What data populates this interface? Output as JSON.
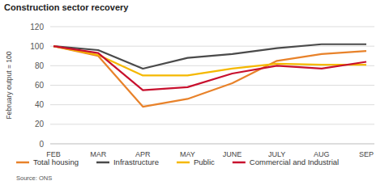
{
  "chart_data": {
    "type": "line",
    "title": "Construction sector recovery",
    "y_label": "February output = 100",
    "source": "Source: ONS",
    "categories": [
      "FEB",
      "MAR",
      "APR",
      "MAY",
      "JUNE",
      "JULY",
      "AUG",
      "SEP"
    ],
    "series": [
      {
        "name": "Total housing",
        "color": "#e8822a",
        "values": [
          100,
          90,
          38,
          46,
          62,
          85,
          92,
          95
        ]
      },
      {
        "name": "Infrastructure",
        "color": "#4a4a4a",
        "values": [
          100,
          96,
          77,
          88,
          92,
          98,
          102,
          102
        ]
      },
      {
        "name": "Public",
        "color": "#f5b800",
        "values": [
          100,
          91,
          70,
          70,
          77,
          82,
          81,
          81
        ]
      },
      {
        "name": "Commercial and Industrial",
        "color": "#c8102e",
        "values": [
          100,
          93,
          55,
          58,
          72,
          80,
          77,
          84
        ]
      }
    ],
    "ylim": [
      0,
      120
    ],
    "yticks": [
      0,
      20,
      40,
      60,
      80,
      100,
      120
    ],
    "grid": true,
    "legend": "bottom"
  }
}
